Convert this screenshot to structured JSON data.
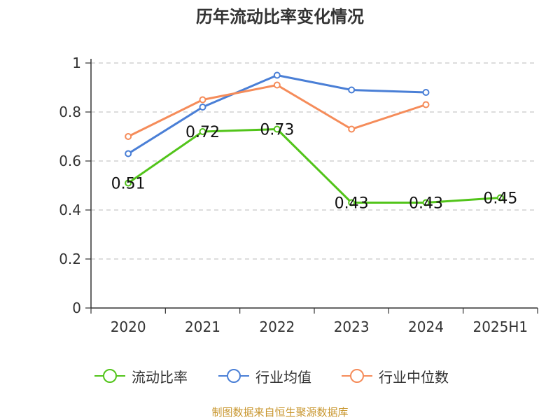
{
  "chart_data": {
    "type": "line",
    "title": "历年流动比率变化情况",
    "categories": [
      "2020",
      "2021",
      "2022",
      "2023",
      "2024",
      "2025H1"
    ],
    "ylim": [
      0,
      1
    ],
    "yticks": [
      "0",
      "0.2",
      "0.4",
      "0.6",
      "0.8",
      "1"
    ],
    "ytick_values": [
      0,
      0.2,
      0.4,
      0.6,
      0.8,
      1
    ],
    "grid": true,
    "legend_position": "bottom",
    "series": [
      {
        "name": "流动比率",
        "color": "#52c41a",
        "values": [
          0.51,
          0.72,
          0.73,
          0.43,
          0.43,
          0.45
        ],
        "labels": [
          "0.51",
          "0.72",
          "0.73",
          "0.43",
          "0.43",
          "0.45"
        ]
      },
      {
        "name": "行业均值",
        "color": "#4a7fd6",
        "values": [
          0.63,
          0.82,
          0.95,
          0.89,
          0.88,
          null
        ]
      },
      {
        "name": "行业中位数",
        "color": "#f58c5a",
        "values": [
          0.7,
          0.85,
          0.91,
          0.73,
          0.83,
          null
        ]
      }
    ],
    "source": "制图数据来自恒生聚源数据库"
  }
}
